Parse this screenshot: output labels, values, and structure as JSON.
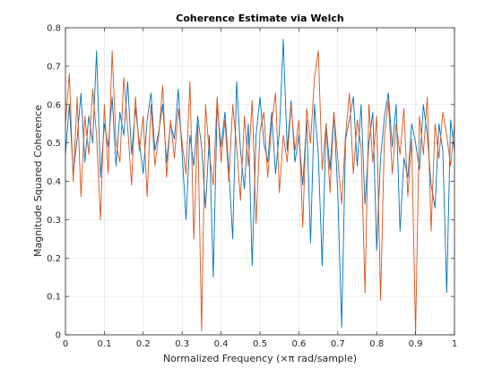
{
  "chart_data": {
    "type": "line",
    "title": "Coherence Estimate via Welch",
    "xlabel": "Normalized Frequency  (×π rad/sample)",
    "ylabel": "Magnitude Squared Coherence",
    "xlim": [
      0,
      1
    ],
    "ylim": [
      0,
      0.8
    ],
    "xticks": [
      0,
      0.1,
      0.2,
      0.3,
      0.4,
      0.5,
      0.6,
      0.7,
      0.8,
      0.9,
      1
    ],
    "yticks": [
      0,
      0.1,
      0.2,
      0.3,
      0.4,
      0.5,
      0.6,
      0.7,
      0.8
    ],
    "xtick_labels": [
      "0",
      "0.1",
      "0.2",
      "0.3",
      "0.4",
      "0.5",
      "0.6",
      "0.7",
      "0.8",
      "0.9",
      "1"
    ],
    "ytick_labels": [
      "0",
      "0.1",
      "0.2",
      "0.3",
      "0.4",
      "0.5",
      "0.6",
      "0.7",
      "0.8"
    ],
    "grid": true,
    "series": [
      {
        "color": "#0072BD",
        "x": [
          0,
          0.01,
          0.02,
          0.03,
          0.04,
          0.05,
          0.06,
          0.07,
          0.08,
          0.09,
          0.1,
          0.11,
          0.12,
          0.13,
          0.14,
          0.15,
          0.16,
          0.17,
          0.18,
          0.19,
          0.2,
          0.21,
          0.22,
          0.23,
          0.24,
          0.25,
          0.26,
          0.27,
          0.28,
          0.29,
          0.3,
          0.31,
          0.32,
          0.33,
          0.34,
          0.35,
          0.36,
          0.37,
          0.38,
          0.39,
          0.4,
          0.41,
          0.42,
          0.43,
          0.44,
          0.45,
          0.46,
          0.47,
          0.48,
          0.49,
          0.5,
          0.51,
          0.52,
          0.53,
          0.54,
          0.55,
          0.56,
          0.57,
          0.58,
          0.59,
          0.6,
          0.61,
          0.62,
          0.63,
          0.64,
          0.65,
          0.66,
          0.67,
          0.68,
          0.69,
          0.7,
          0.71,
          0.72,
          0.73,
          0.74,
          0.75,
          0.76,
          0.77,
          0.78,
          0.79,
          0.8,
          0.81,
          0.82,
          0.83,
          0.84,
          0.85,
          0.86,
          0.87,
          0.88,
          0.89,
          0.9,
          0.91,
          0.92,
          0.93,
          0.94,
          0.95,
          0.96,
          0.97,
          0.98,
          0.99,
          1
        ],
        "values": [
          0.47,
          0.6,
          0.42,
          0.51,
          0.63,
          0.45,
          0.57,
          0.5,
          0.74,
          0.41,
          0.55,
          0.49,
          0.62,
          0.44,
          0.58,
          0.52,
          0.66,
          0.47,
          0.59,
          0.5,
          0.42,
          0.56,
          0.63,
          0.48,
          0.53,
          0.6,
          0.45,
          0.55,
          0.51,
          0.64,
          0.47,
          0.3,
          0.52,
          0.44,
          0.57,
          0.49,
          0.33,
          0.52,
          0.15,
          0.6,
          0.49,
          0.58,
          0.43,
          0.25,
          0.66,
          0.48,
          0.38,
          0.55,
          0.18,
          0.52,
          0.62,
          0.5,
          0.45,
          0.58,
          0.42,
          0.53,
          0.77,
          0.48,
          0.61,
          0.45,
          0.52,
          0.39,
          0.56,
          0.24,
          0.6,
          0.47,
          0.18,
          0.55,
          0.43,
          0.58,
          0.37,
          0.02,
          0.51,
          0.56,
          0.62,
          0.44,
          0.6,
          0.34,
          0.5,
          0.58,
          0.22,
          0.46,
          0.57,
          0.63,
          0.49,
          0.6,
          0.27,
          0.46,
          0.41,
          0.55,
          0.5,
          0.43,
          0.6,
          0.52,
          0.39,
          0.33,
          0.55,
          0.48,
          0.11,
          0.56,
          0.48
        ]
      },
      {
        "color": "#D95319",
        "x": [
          0,
          0.01,
          0.02,
          0.03,
          0.04,
          0.05,
          0.06,
          0.07,
          0.08,
          0.09,
          0.1,
          0.11,
          0.12,
          0.13,
          0.14,
          0.15,
          0.16,
          0.17,
          0.18,
          0.19,
          0.2,
          0.21,
          0.22,
          0.23,
          0.24,
          0.25,
          0.26,
          0.27,
          0.28,
          0.29,
          0.3,
          0.31,
          0.32,
          0.33,
          0.34,
          0.35,
          0.36,
          0.37,
          0.38,
          0.39,
          0.4,
          0.41,
          0.42,
          0.43,
          0.44,
          0.45,
          0.46,
          0.47,
          0.48,
          0.49,
          0.5,
          0.51,
          0.52,
          0.53,
          0.54,
          0.55,
          0.56,
          0.57,
          0.58,
          0.59,
          0.6,
          0.61,
          0.62,
          0.63,
          0.64,
          0.65,
          0.66,
          0.67,
          0.68,
          0.69,
          0.7,
          0.71,
          0.72,
          0.73,
          0.74,
          0.75,
          0.76,
          0.77,
          0.78,
          0.79,
          0.8,
          0.81,
          0.82,
          0.83,
          0.84,
          0.85,
          0.86,
          0.87,
          0.88,
          0.89,
          0.9,
          0.91,
          0.92,
          0.93,
          0.94,
          0.95,
          0.96,
          0.97,
          0.98,
          0.99,
          1
        ],
        "values": [
          0.55,
          0.68,
          0.4,
          0.62,
          0.36,
          0.57,
          0.47,
          0.64,
          0.52,
          0.3,
          0.6,
          0.42,
          0.74,
          0.5,
          0.45,
          0.67,
          0.54,
          0.39,
          0.62,
          0.48,
          0.57,
          0.36,
          0.6,
          0.44,
          0.52,
          0.65,
          0.41,
          0.56,
          0.46,
          0.59,
          0.5,
          0.42,
          0.66,
          0.25,
          0.55,
          0.01,
          0.6,
          0.47,
          0.39,
          0.62,
          0.45,
          0.56,
          0.4,
          0.6,
          0.49,
          0.35,
          0.57,
          0.44,
          0.61,
          0.29,
          0.53,
          0.58,
          0.41,
          0.55,
          0.63,
          0.37,
          0.52,
          0.45,
          0.6,
          0.48,
          0.56,
          0.28,
          0.59,
          0.5,
          0.67,
          0.74,
          0.43,
          0.55,
          0.37,
          0.58,
          0.46,
          0.34,
          0.52,
          0.63,
          0.42,
          0.56,
          0.49,
          0.11,
          0.6,
          0.45,
          0.57,
          0.09,
          0.52,
          0.61,
          0.42,
          0.55,
          0.47,
          0.59,
          0.36,
          0.51,
          0.0,
          0.57,
          0.47,
          0.62,
          0.27,
          0.55,
          0.46,
          0.58,
          0.52,
          0.44,
          0.55
        ]
      }
    ]
  }
}
